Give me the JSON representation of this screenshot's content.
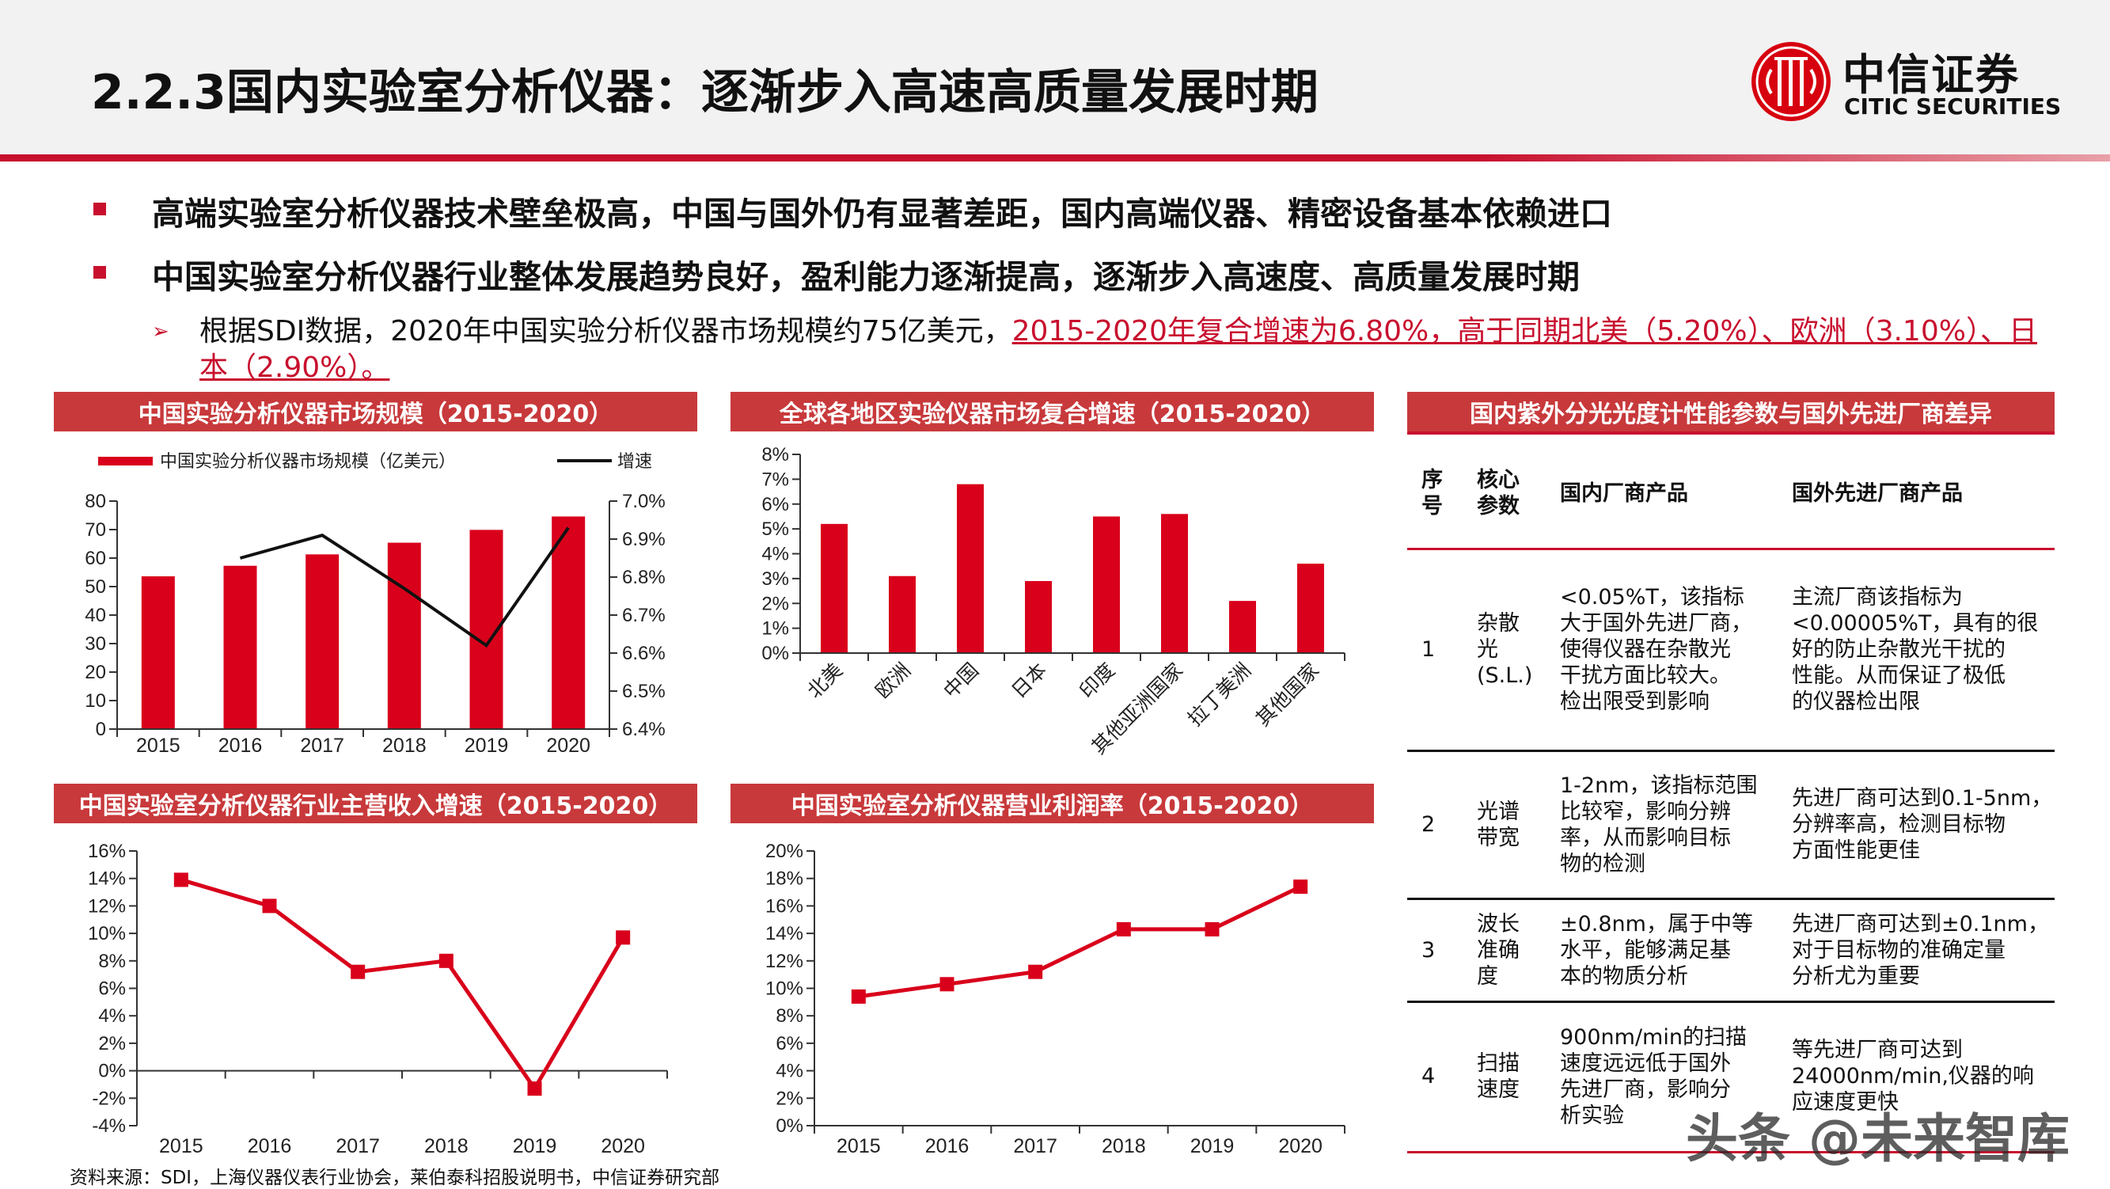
{
  "header": {
    "title": "2.2.3国内实验室分析仪器：逐渐步入高速高质量发展时期",
    "logo": {
      "cn": "中信证券",
      "en": "CITIC SECURITIES",
      "icon": "citic-circle-logo"
    }
  },
  "bullets": [
    "高端实验室分析仪器技术壁垒极高，中国与国外仍有显著差距，国内高端仪器、精密设备基本依赖进口",
    "中国实验室分析仪器行业整体发展趋势良好，盈利能力逐渐提高，逐渐步入高速度、高质量发展时期"
  ],
  "sub_bullet": {
    "plain": "根据SDI数据，2020年中国实验分析仪器市场规模约75亿美元，",
    "highlight": "2015-2020年复合增速为6.80%，高于同期北美（5.20%）、欧洲（3.10%）、日本（2.90%）。",
    "icon": "arrow-bullet-icon"
  },
  "colors": {
    "accent": "#c8102e",
    "bar": "#d9001b",
    "header_bar": "#c8393b",
    "line_black": "#111111"
  },
  "chart_data": [
    {
      "type": "bar+line",
      "title": "中国实验分析仪器市场规模（2015-2020）",
      "categories": [
        "2015",
        "2016",
        "2017",
        "2018",
        "2019",
        "2020"
      ],
      "series": [
        {
          "name": "中国实验分析仪器市场规模（亿美元）",
          "type": "bar",
          "axis": "left",
          "values": [
            53.6,
            57.3,
            61.3,
            65.4,
            69.9,
            74.6
          ]
        },
        {
          "name": "增速",
          "type": "line",
          "axis": "right",
          "values": [
            null,
            6.85,
            6.91,
            6.77,
            6.62,
            6.93
          ]
        }
      ],
      "yleft": {
        "lim": [
          0,
          80
        ],
        "ticks": [
          "0",
          "10",
          "20",
          "30",
          "40",
          "50",
          "60",
          "70",
          "80"
        ]
      },
      "yright": {
        "lim": [
          6.4,
          7.0
        ],
        "ticks": [
          "6.4%",
          "6.5%",
          "6.6%",
          "6.7%",
          "6.8%",
          "6.9%",
          "7.0%"
        ]
      },
      "legend": "top"
    },
    {
      "type": "bar",
      "title": "全球各地区实验仪器市场复合增速（2015-2020）",
      "categories": [
        "北美",
        "欧洲",
        "中国",
        "日本",
        "印度",
        "其他亚洲国家",
        "拉丁美洲",
        "其他国家"
      ],
      "values": [
        5.2,
        3.1,
        6.8,
        2.9,
        5.5,
        5.6,
        2.1,
        3.6
      ],
      "ylim": [
        0,
        8
      ],
      "yticks": [
        "0%",
        "1%",
        "2%",
        "3%",
        "4%",
        "5%",
        "6%",
        "7%",
        "8%"
      ]
    },
    {
      "type": "line",
      "title": "中国实验室分析仪器行业主营收入增速（2015-2020）",
      "categories": [
        "2015",
        "2016",
        "2017",
        "2018",
        "2019",
        "2020"
      ],
      "values": [
        13.9,
        12.0,
        7.2,
        8.0,
        -1.3,
        9.7
      ],
      "ylim": [
        -4,
        16
      ],
      "yticks": [
        "-4%",
        "-2%",
        "0%",
        "2%",
        "4%",
        "6%",
        "8%",
        "10%",
        "12%",
        "14%",
        "16%"
      ]
    },
    {
      "type": "line",
      "title": "中国实验室分析仪器营业利润率（2015-2020）",
      "categories": [
        "2015",
        "2016",
        "2017",
        "2018",
        "2019",
        "2020"
      ],
      "values": [
        9.4,
        10.3,
        11.2,
        14.3,
        14.3,
        17.4
      ],
      "ylim": [
        0,
        20
      ],
      "yticks": [
        "0%",
        "2%",
        "4%",
        "6%",
        "8%",
        "10%",
        "12%",
        "14%",
        "16%",
        "18%",
        "20%"
      ]
    }
  ],
  "table": {
    "title": "国内紫外分光光度计性能参数与国外先进厂商差异",
    "headers": [
      "序\n号",
      "核心\n参数",
      "国内厂商产品",
      "国外先进厂商产品"
    ],
    "rows": [
      [
        "1",
        "杂散\n光\n(S.L.)",
        "<0.05%T，该指标\n大于国外先进厂商，\n使得仪器在杂散光\n干扰方面比较大。\n检出限受到影响",
        "主流厂商该指标为\n<0.00005%T，具有的很\n好的防止杂散光干扰的\n性能。从而保证了极低\n的仪器检出限"
      ],
      [
        "2",
        "光谱\n带宽",
        "1-2nm，该指标范围\n比较窄，影响分辨\n率，从而影响目标\n物的检测",
        "先进厂商可达到0.1-5nm，\n分辨率高，检测目标物\n方面性能更佳"
      ],
      [
        "3",
        "波长\n准确\n度",
        "±0.8nm，属于中等\n水平，能够满足基\n本的物质分析",
        "先进厂商可达到±0.1nm，\n对于目标物的准确定量\n分析尤为重要"
      ],
      [
        "4",
        "扫描\n速度",
        "900nm/min的扫描\n速度远远低于国外\n先进厂商，影响分\n析实验",
        "等先进厂商可达到\n24000nm/min,仪器的响\n应速度更快"
      ]
    ]
  },
  "source": "资料来源：SDI，上海仪器仪表行业协会，莱伯泰科招股说明书，中信证券研究部",
  "watermark": "头条 @未来智库"
}
